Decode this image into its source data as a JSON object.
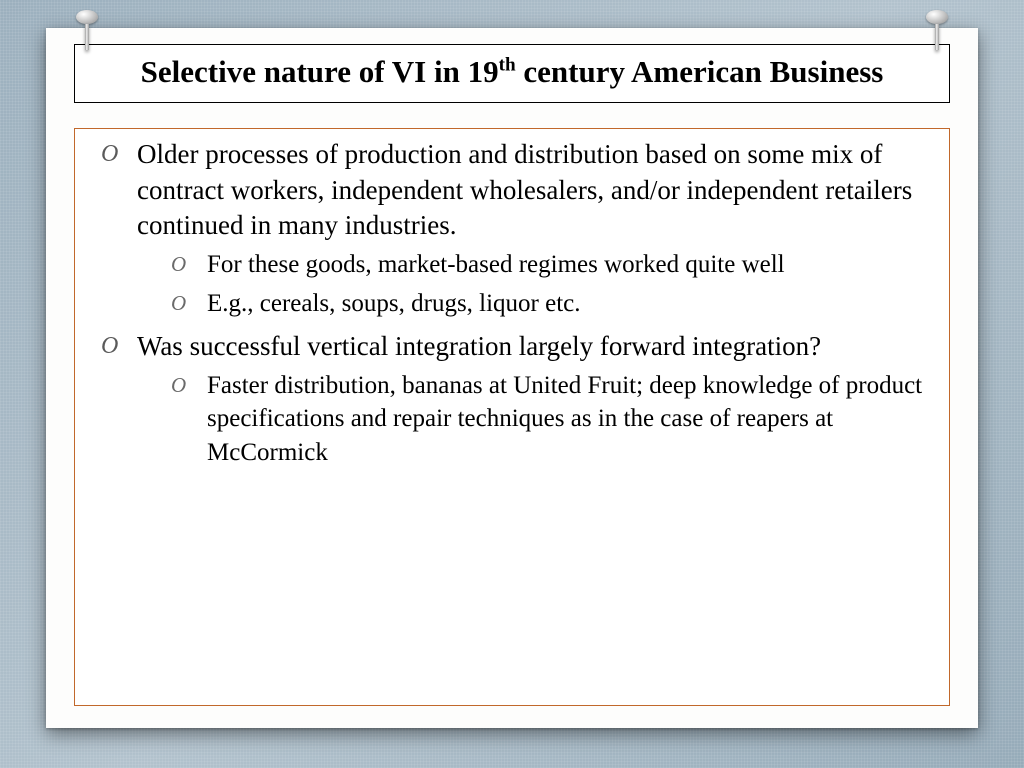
{
  "slide": {
    "title_html": "Selective nature of VI in 19<sup>th</sup> century American Business",
    "bullets": [
      {
        "text": "Older processes of production and distribution based on some mix of contract workers, independent wholesalers, and/or independent retailers continued in many industries.",
        "sub": [
          "For these goods, market-based regimes worked quite well",
          "E.g., cereals, soups, drugs, liquor etc."
        ]
      },
      {
        "text": "Was successful vertical integration largely forward integration?",
        "sub": [
          "Faster distribution, bananas at United Fruit; deep knowledge of product specifications and repair techniques as in the case of reapers at McCormick"
        ]
      }
    ]
  },
  "colors": {
    "title_border": "#000000",
    "body_border": "#c1682b",
    "slide_bg": "#fdfdfc",
    "page_bg": "#a3b5c2"
  }
}
